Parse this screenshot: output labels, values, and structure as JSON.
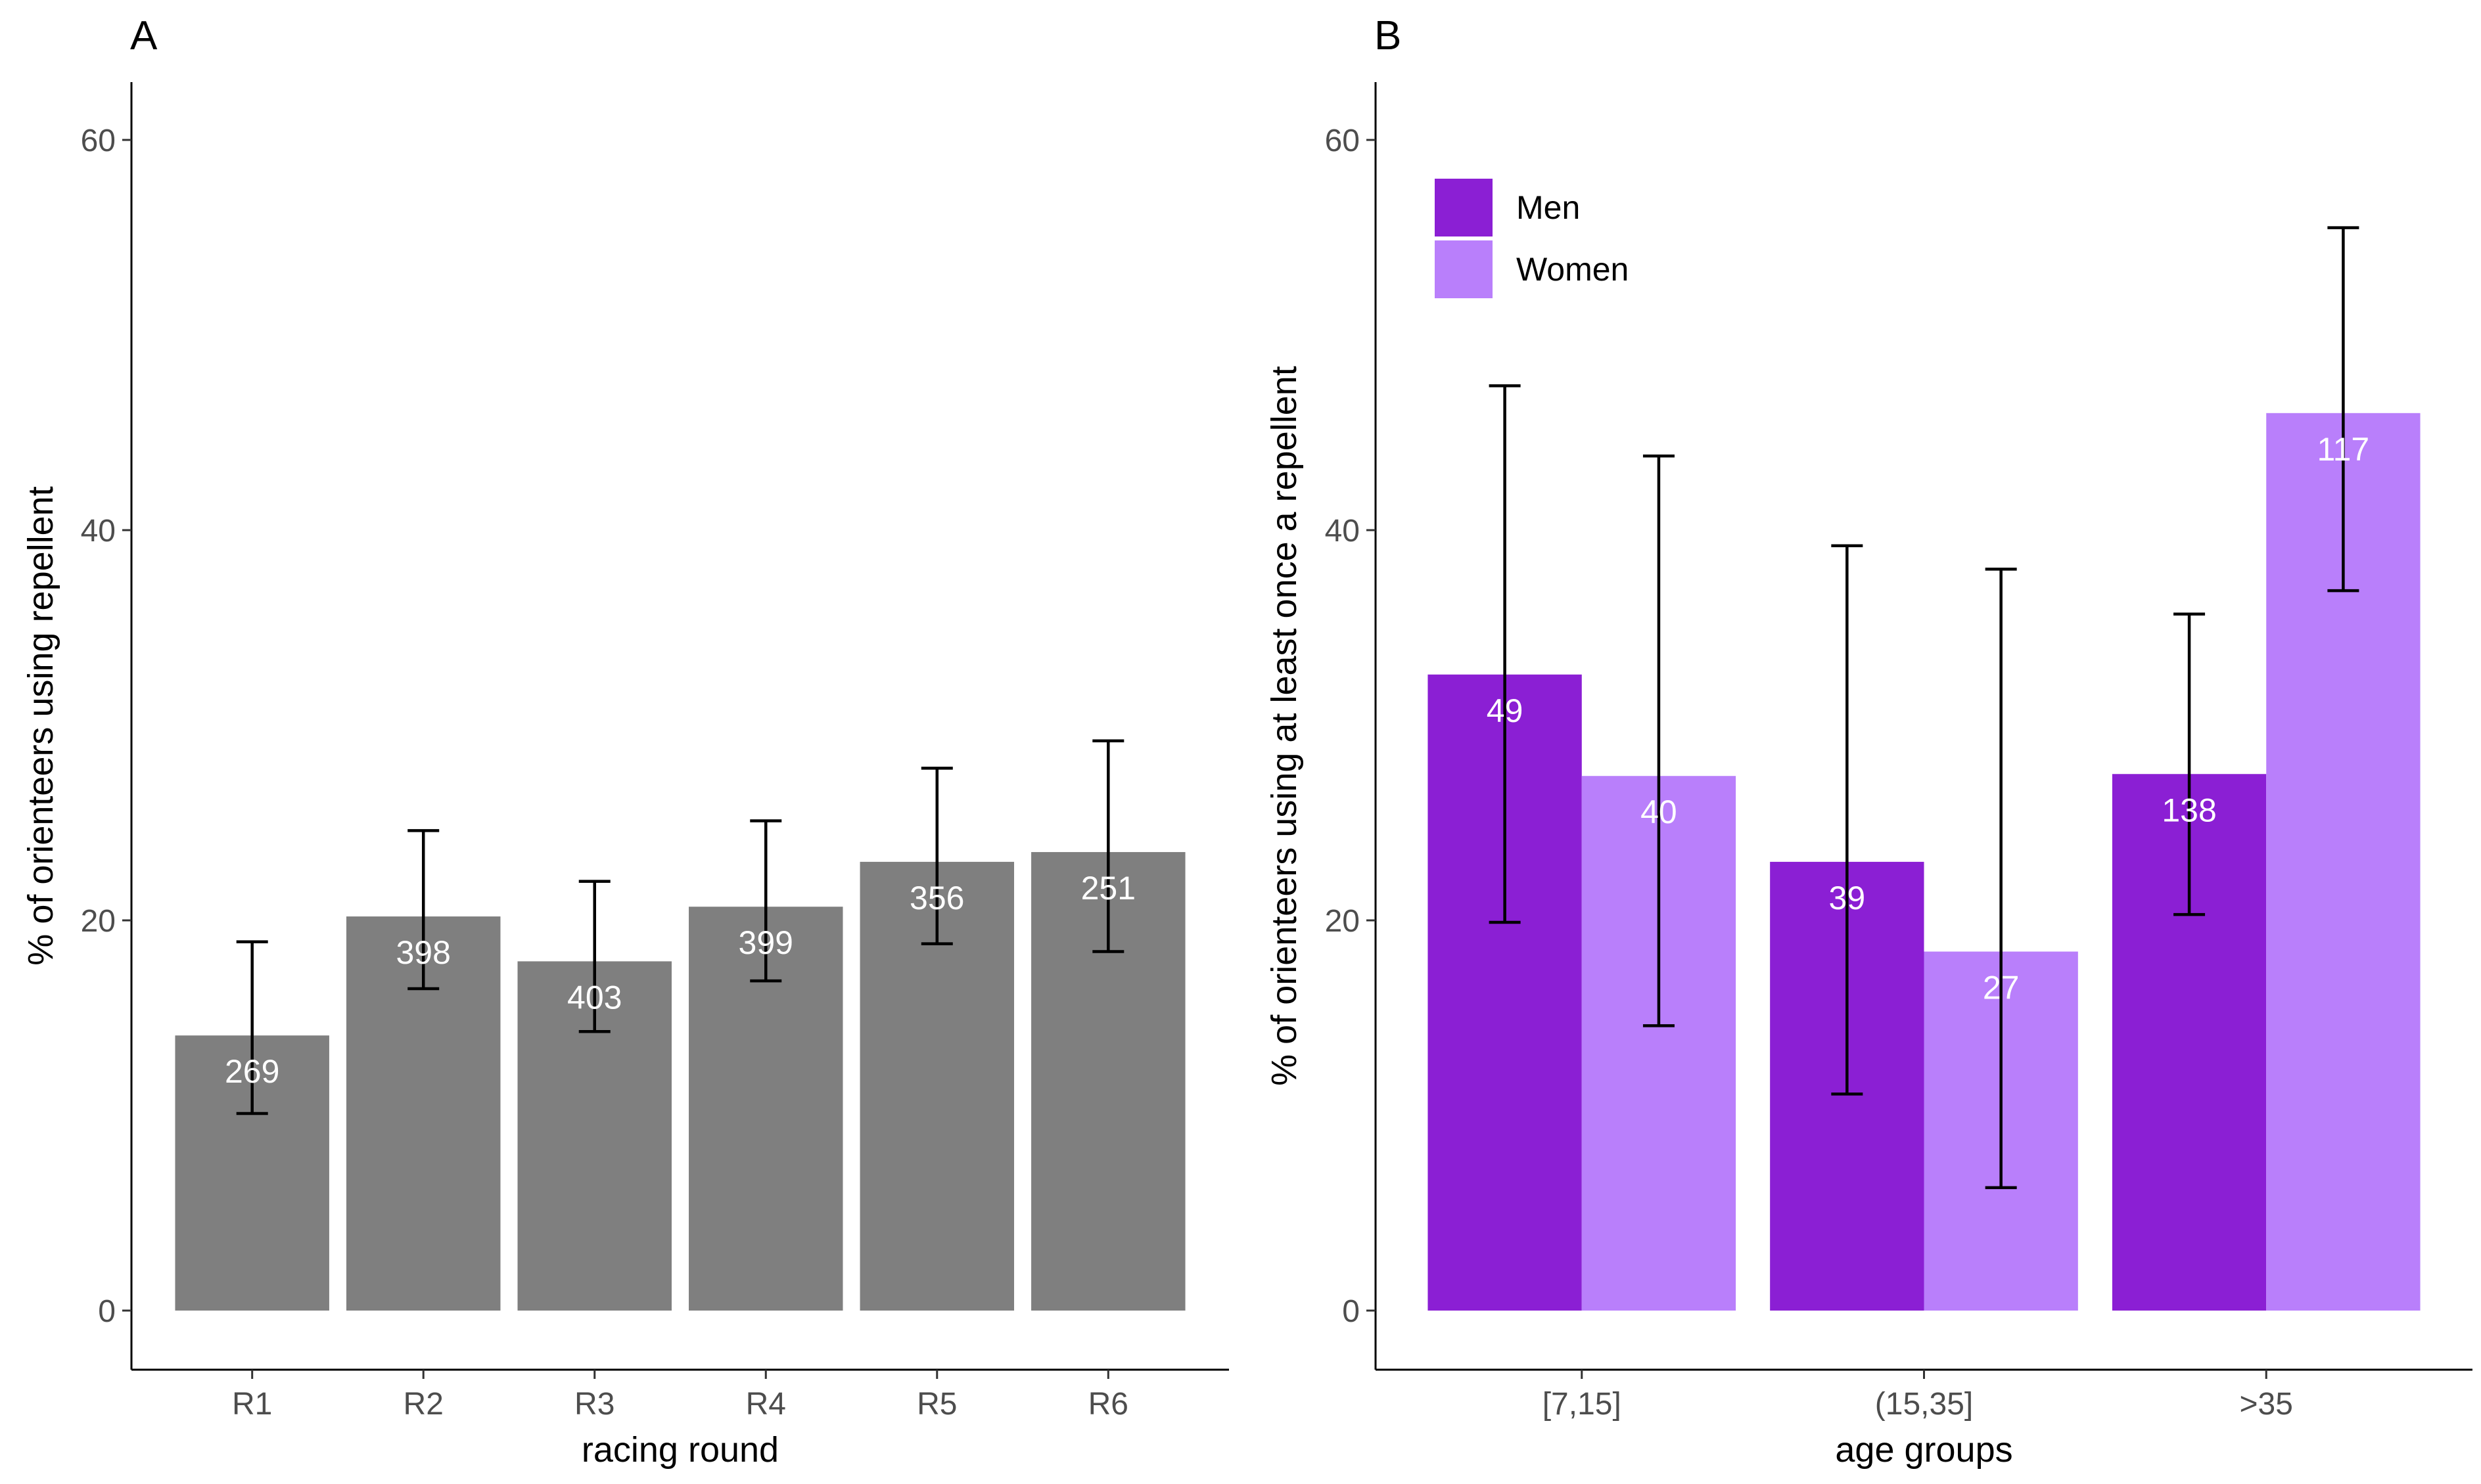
{
  "colors": {
    "bar_grey": "#7f7f7f",
    "men": "#8b1fd4",
    "women": "#b97ffb",
    "axis": "#000000",
    "error_bar": "#000000",
    "label": "#ffffff"
  },
  "chart_data": [
    {
      "panel": "A",
      "type": "bar",
      "title": "",
      "xlabel": "racing round",
      "ylabel": "% of orienteers using repellent",
      "ylim": [
        0,
        63
      ],
      "yticks": [
        0,
        20,
        40,
        60
      ],
      "categories": [
        "R1",
        "R2",
        "R3",
        "R4",
        "R5",
        "R6"
      ],
      "values": [
        14.1,
        20.2,
        17.9,
        20.7,
        23.0,
        23.5
      ],
      "error_low": [
        10.1,
        16.5,
        14.3,
        16.9,
        18.8,
        18.4
      ],
      "error_high": [
        18.9,
        24.6,
        22.0,
        25.1,
        27.8,
        29.2
      ],
      "n_labels": [
        "269",
        "398",
        "403",
        "399",
        "356",
        "251"
      ],
      "grid": false
    },
    {
      "panel": "B",
      "type": "bar",
      "title": "",
      "xlabel": "age groups",
      "ylabel": "% of orienteers using at least once a repellent",
      "ylim": [
        0,
        63
      ],
      "yticks": [
        0,
        20,
        40,
        60
      ],
      "categories": [
        "[7,15]",
        "(15,35]",
        ">35"
      ],
      "legend": {
        "position": "top-left",
        "entries": [
          "Men",
          "Women"
        ]
      },
      "series": [
        {
          "name": "Men",
          "values": [
            32.6,
            23.0,
            27.5
          ],
          "error_low": [
            19.9,
            11.1,
            20.3
          ],
          "error_high": [
            47.4,
            39.2,
            35.7
          ],
          "n_labels": [
            "49",
            "39",
            "138"
          ]
        },
        {
          "name": "Women",
          "values": [
            27.4,
            18.4,
            46.0
          ],
          "error_low": [
            14.6,
            6.3,
            36.9
          ],
          "error_high": [
            43.8,
            38.0,
            55.5
          ],
          "n_labels": [
            "40",
            "27",
            "117"
          ]
        }
      ],
      "grid": false
    }
  ]
}
